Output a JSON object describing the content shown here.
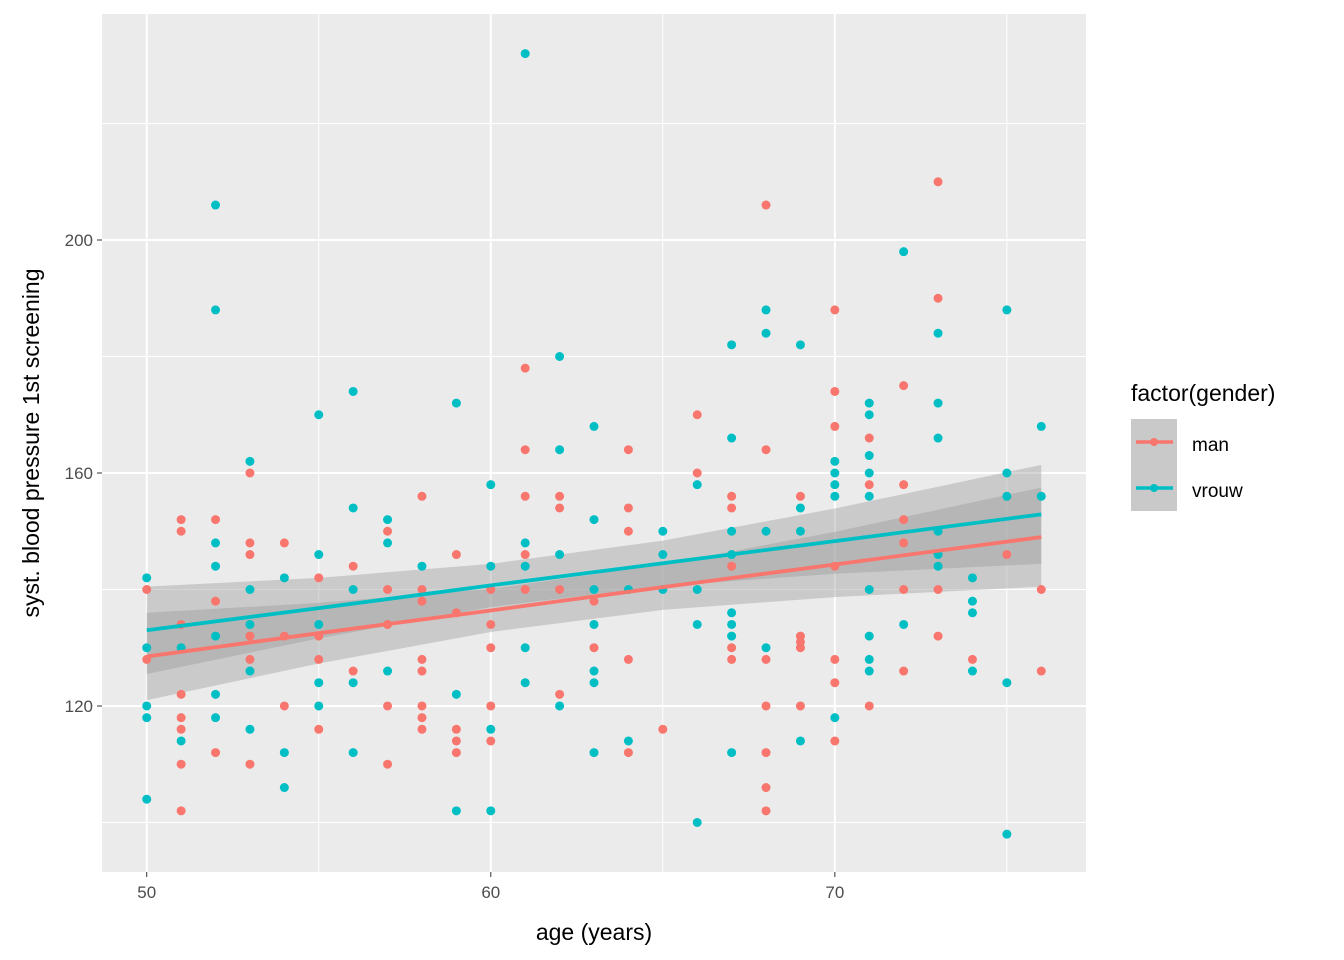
{
  "chart_data": {
    "type": "scatter",
    "title": "",
    "xlabel": "age (years)",
    "ylabel": "syst. blood pressure 1st screening",
    "xlim": [
      48.7,
      77.3
    ],
    "ylim": [
      91.5,
      238.8
    ],
    "x_ticks": [
      50,
      60,
      70
    ],
    "y_ticks": [
      120,
      160,
      200
    ],
    "grid": true,
    "legend": {
      "title": "factor(gender)",
      "position": "right"
    },
    "colors": {
      "man": "#F8766D",
      "vrouw": "#00BFC4",
      "panel": "#EBEBEB",
      "ribbon": "#999999"
    },
    "series": [
      {
        "name": "man",
        "points": {
          "50": [
            140,
            128
          ],
          "51": [
            152,
            150,
            134,
            122,
            118,
            116,
            110,
            102
          ],
          "52": [
            152,
            138,
            112
          ],
          "53": [
            160,
            148,
            146,
            132,
            128,
            110
          ],
          "54": [
            148,
            132,
            120
          ],
          "55": [
            142,
            132,
            128,
            116
          ],
          "56": [
            144,
            126
          ],
          "57": [
            150,
            140,
            134,
            120,
            110
          ],
          "58": [
            156,
            140,
            138,
            128,
            126,
            120,
            118,
            116
          ],
          "59": [
            146,
            136,
            116,
            114,
            112
          ],
          "60": [
            140,
            134,
            130,
            120,
            114
          ],
          "61": [
            178,
            164,
            156,
            146,
            140
          ],
          "62": [
            156,
            154,
            140,
            122
          ],
          "63": [
            138,
            130
          ],
          "64": [
            164,
            154,
            150,
            128,
            112
          ],
          "65": [
            116
          ],
          "66": [
            170,
            160
          ],
          "67": [
            156,
            154,
            144,
            130,
            128
          ],
          "68": [
            206,
            164,
            128,
            120,
            112,
            106,
            102
          ],
          "69": [
            156,
            132,
            131,
            130,
            120
          ],
          "70": [
            188,
            174,
            168,
            144,
            128,
            124,
            114
          ],
          "71": [
            166,
            158,
            120
          ],
          "72": [
            175,
            158,
            152,
            148,
            140,
            126
          ],
          "73": [
            210,
            190,
            140,
            132
          ],
          "74": [
            128
          ],
          "75": [
            146
          ],
          "76": [
            140,
            126
          ]
        },
        "fit": {
          "x": [
            50,
            55,
            60,
            65,
            70,
            76
          ],
          "y": [
            128.5,
            132.5,
            136.4,
            140.4,
            144.3,
            149.0
          ],
          "lower": [
            121.0,
            127.3,
            132.7,
            136.5,
            138.7,
            140.5
          ],
          "upper": [
            136.0,
            137.7,
            140.1,
            144.3,
            149.9,
            157.5
          ]
        }
      },
      {
        "name": "vrouw",
        "points": {
          "50": [
            142,
            130,
            120,
            118,
            104
          ],
          "51": [
            130,
            114
          ],
          "52": [
            206,
            188,
            148,
            144,
            132,
            122,
            118
          ],
          "53": [
            162,
            140,
            134,
            126,
            116
          ],
          "54": [
            142,
            112,
            106
          ],
          "55": [
            170,
            146,
            134,
            124,
            120
          ],
          "56": [
            174,
            154,
            140,
            124,
            112
          ],
          "57": [
            152,
            148,
            126
          ],
          "58": [
            144
          ],
          "59": [
            172,
            122,
            102
          ],
          "60": [
            158,
            144,
            116,
            102
          ],
          "61": [
            232,
            148,
            144,
            130,
            124
          ],
          "62": [
            180,
            164,
            146,
            120
          ],
          "63": [
            168,
            152,
            140,
            134,
            126,
            124,
            112
          ],
          "64": [
            140,
            114
          ],
          "65": [
            150,
            146,
            140
          ],
          "66": [
            158,
            140,
            134,
            100
          ],
          "67": [
            182,
            166,
            150,
            146,
            136,
            134,
            132,
            112
          ],
          "68": [
            188,
            184,
            150,
            130
          ],
          "69": [
            182,
            154,
            150,
            114
          ],
          "70": [
            162,
            160,
            158,
            156,
            118
          ],
          "71": [
            172,
            170,
            163,
            160,
            156,
            140,
            132,
            128,
            126
          ],
          "72": [
            198,
            134
          ],
          "73": [
            184,
            172,
            166,
            150,
            146,
            144
          ],
          "74": [
            142,
            138,
            136,
            126
          ],
          "75": [
            188,
            160,
            156,
            124,
            98
          ],
          "76": [
            168,
            156
          ]
        },
        "fit": {
          "x": [
            50,
            55,
            60,
            65,
            70,
            76
          ],
          "y": [
            133.0,
            136.8,
            140.7,
            144.5,
            148.3,
            152.9
          ],
          "lower": [
            125.5,
            131.6,
            137.0,
            140.6,
            142.7,
            144.4
          ],
          "upper": [
            140.5,
            142.0,
            144.4,
            148.4,
            153.9,
            161.4
          ]
        }
      }
    ]
  }
}
